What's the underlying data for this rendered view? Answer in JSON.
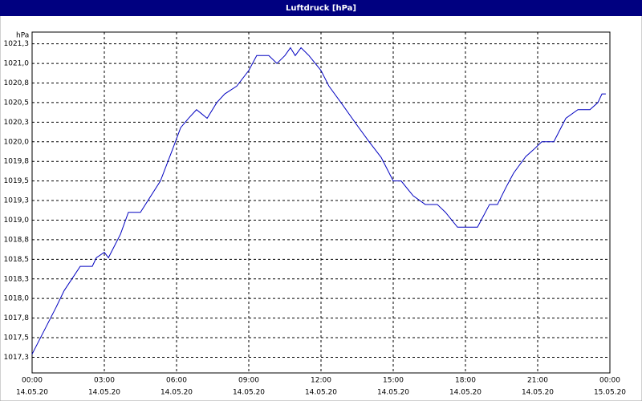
{
  "chart_data": {
    "type": "line",
    "title": "Luftdruck [hPa]",
    "y_unit": "hPa",
    "x": [
      0,
      1,
      1.33,
      2,
      2.5,
      2.67,
      3,
      3.17,
      3.67,
      4,
      4.5,
      5.33,
      5.83,
      6.17,
      6.5,
      6.83,
      7.27,
      7.67,
      8,
      8.5,
      9,
      9.33,
      9.83,
      10.17,
      10.5,
      10.73,
      10.93,
      11.17,
      11.5,
      12,
      12.33,
      12.83,
      13.5,
      14,
      14.5,
      15,
      15.33,
      15.83,
      16.33,
      16.83,
      17.17,
      17.67,
      18.5,
      19,
      19.33,
      19.67,
      20,
      20.5,
      20.83,
      21.17,
      21.67,
      22.17,
      22.67,
      23.17,
      23.5,
      23.67,
      23.83
    ],
    "series": [
      {
        "name": "Luftdruck",
        "color": "#0000c0",
        "values": [
          1017.29,
          1017.89,
          1018.1,
          1018.41,
          1018.41,
          1018.52,
          1018.59,
          1018.52,
          1018.82,
          1019.1,
          1019.1,
          1019.5,
          1019.9,
          1020.18,
          1020.3,
          1020.41,
          1020.3,
          1020.5,
          1020.61,
          1020.71,
          1020.91,
          1021.1,
          1021.1,
          1021.0,
          1021.1,
          1021.2,
          1021.1,
          1021.2,
          1021.1,
          1020.91,
          1020.71,
          1020.5,
          1020.21,
          1020.0,
          1019.8,
          1019.5,
          1019.5,
          1019.31,
          1019.2,
          1019.2,
          1019.1,
          1018.91,
          1018.91,
          1019.2,
          1019.2,
          1019.41,
          1019.6,
          1019.81,
          1019.9,
          1020.0,
          1020.0,
          1020.3,
          1020.41,
          1020.41,
          1020.5,
          1020.61,
          1020.61
        ]
      }
    ],
    "xlim": [
      0,
      24
    ],
    "xticks": [
      {
        "value": 0,
        "label": "00:00"
      },
      {
        "value": 3,
        "label": "03:00"
      },
      {
        "value": 6,
        "label": "06:00"
      },
      {
        "value": 9,
        "label": "09:00"
      },
      {
        "value": 12,
        "label": "12:00"
      },
      {
        "value": 15,
        "label": "15:00"
      },
      {
        "value": 18,
        "label": "18:00"
      },
      {
        "value": 21,
        "label": "21:00"
      },
      {
        "value": 24,
        "label": "00:00"
      }
    ],
    "xtick_dates": [
      "14.05.20",
      "14.05.20",
      "14.05.20",
      "14.05.20",
      "14.05.20",
      "14.05.20",
      "14.05.20",
      "14.05.20",
      "15.05.20"
    ],
    "ylim": [
      1017.05,
      1021.4
    ],
    "yticks": [
      {
        "value": 1017.25,
        "label": "1017,3"
      },
      {
        "value": 1017.5,
        "label": "1017,5"
      },
      {
        "value": 1017.75,
        "label": "1017,8"
      },
      {
        "value": 1018.0,
        "label": "1018,0"
      },
      {
        "value": 1018.25,
        "label": "1018,3"
      },
      {
        "value": 1018.5,
        "label": "1018,5"
      },
      {
        "value": 1018.75,
        "label": "1018,8"
      },
      {
        "value": 1019.0,
        "label": "1019,0"
      },
      {
        "value": 1019.25,
        "label": "1019,3"
      },
      {
        "value": 1019.5,
        "label": "1019,5"
      },
      {
        "value": 1019.75,
        "label": "1019,8"
      },
      {
        "value": 1020.0,
        "label": "1020,0"
      },
      {
        "value": 1020.25,
        "label": "1020,3"
      },
      {
        "value": 1020.5,
        "label": "1020,5"
      },
      {
        "value": 1020.75,
        "label": "1020,8"
      },
      {
        "value": 1021.0,
        "label": "1021,0"
      },
      {
        "value": 1021.25,
        "label": "1021,3"
      }
    ],
    "grid": true
  }
}
